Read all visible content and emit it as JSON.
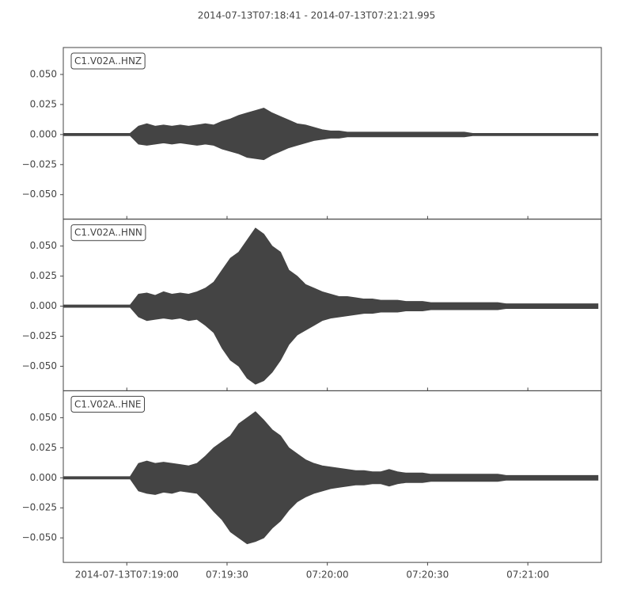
{
  "title": "2014-07-13T07:18:41  -  2014-07-13T07:21:21.995",
  "chart_data": [
    {
      "type": "area",
      "trace_id": "C1.V02A..HNZ",
      "color": "#444444",
      "x": [
        0,
        2.5,
        5,
        7.5,
        10,
        12.5,
        15,
        17.5,
        20,
        22.5,
        25,
        27.5,
        30,
        32.5,
        35,
        37.5,
        40,
        42.5,
        45,
        47.5,
        50,
        52.5,
        55,
        57.5,
        60,
        62.5,
        65,
        67.5,
        70,
        72.5,
        75,
        77.5,
        80,
        82.5,
        85,
        87.5,
        90,
        92.5,
        95,
        97.5,
        100,
        102.5,
        105,
        107.5,
        110,
        112.5,
        115,
        117.5,
        120,
        122.5,
        125,
        127.5,
        130,
        132.5,
        135,
        137.5,
        140,
        142.5,
        145,
        147.5,
        150,
        152.5,
        155,
        157.5,
        160
      ],
      "upper": [
        0.001,
        0.001,
        0.001,
        0.001,
        0.001,
        0.001,
        0.001,
        0.001,
        0.001,
        0.007,
        0.009,
        0.007,
        0.008,
        0.007,
        0.008,
        0.007,
        0.008,
        0.009,
        0.008,
        0.011,
        0.013,
        0.016,
        0.018,
        0.02,
        0.022,
        0.018,
        0.015,
        0.012,
        0.009,
        0.008,
        0.006,
        0.004,
        0.003,
        0.003,
        0.002,
        0.002,
        0.002,
        0.002,
        0.002,
        0.002,
        0.002,
        0.002,
        0.002,
        0.002,
        0.002,
        0.002,
        0.002,
        0.002,
        0.002,
        0.001,
        0.001,
        0.001,
        0.001,
        0.001,
        0.001,
        0.001,
        0.001,
        0.001,
        0.001,
        0.001,
        0.001,
        0.001,
        0.001,
        0.001,
        0.001
      ],
      "lower": [
        -0.001,
        -0.001,
        -0.001,
        -0.001,
        -0.001,
        -0.001,
        -0.001,
        -0.001,
        -0.001,
        -0.008,
        -0.009,
        -0.008,
        -0.007,
        -0.008,
        -0.007,
        -0.008,
        -0.009,
        -0.008,
        -0.009,
        -0.012,
        -0.014,
        -0.016,
        -0.019,
        -0.02,
        -0.021,
        -0.017,
        -0.014,
        -0.011,
        -0.009,
        -0.007,
        -0.005,
        -0.004,
        -0.003,
        -0.003,
        -0.002,
        -0.002,
        -0.002,
        -0.002,
        -0.002,
        -0.002,
        -0.002,
        -0.002,
        -0.002,
        -0.002,
        -0.002,
        -0.002,
        -0.002,
        -0.002,
        -0.002,
        -0.001,
        -0.001,
        -0.001,
        -0.001,
        -0.001,
        -0.001,
        -0.001,
        -0.001,
        -0.001,
        -0.001,
        -0.001,
        -0.001,
        -0.001,
        -0.001,
        -0.001,
        -0.001
      ],
      "ylim": [
        -0.0704,
        0.0724
      ],
      "yticks": [
        {
          "value": -0.05,
          "label": "−0.050"
        },
        {
          "value": -0.025,
          "label": "−0.025"
        },
        {
          "value": 0,
          "label": "0.000"
        },
        {
          "value": 0.025,
          "label": "0.025"
        },
        {
          "value": 0.05,
          "label": "0.050"
        }
      ]
    },
    {
      "type": "area",
      "trace_id": "C1.V02A..HNN",
      "color": "#444444",
      "x": [
        0,
        2.5,
        5,
        7.5,
        10,
        12.5,
        15,
        17.5,
        20,
        22.5,
        25,
        27.5,
        30,
        32.5,
        35,
        37.5,
        40,
        42.5,
        45,
        47.5,
        50,
        52.5,
        55,
        57.5,
        60,
        62.5,
        65,
        67.5,
        70,
        72.5,
        75,
        77.5,
        80,
        82.5,
        85,
        87.5,
        90,
        92.5,
        95,
        97.5,
        100,
        102.5,
        105,
        107.5,
        110,
        112.5,
        115,
        117.5,
        120,
        122.5,
        125,
        127.5,
        130,
        132.5,
        135,
        137.5,
        140,
        142.5,
        145,
        147.5,
        150,
        152.5,
        155,
        157.5,
        160
      ],
      "upper": [
        0.001,
        0.001,
        0.001,
        0.001,
        0.001,
        0.001,
        0.001,
        0.001,
        0.001,
        0.01,
        0.011,
        0.009,
        0.012,
        0.01,
        0.011,
        0.01,
        0.012,
        0.015,
        0.02,
        0.03,
        0.04,
        0.045,
        0.055,
        0.065,
        0.06,
        0.05,
        0.045,
        0.03,
        0.025,
        0.018,
        0.015,
        0.012,
        0.01,
        0.008,
        0.008,
        0.007,
        0.006,
        0.006,
        0.005,
        0.005,
        0.005,
        0.004,
        0.004,
        0.004,
        0.003,
        0.003,
        0.003,
        0.003,
        0.003,
        0.003,
        0.003,
        0.003,
        0.003,
        0.002,
        0.002,
        0.002,
        0.002,
        0.002,
        0.002,
        0.002,
        0.002,
        0.002,
        0.002,
        0.002,
        0.002
      ],
      "lower": [
        -0.001,
        -0.001,
        -0.001,
        -0.001,
        -0.001,
        -0.001,
        -0.001,
        -0.001,
        -0.001,
        -0.009,
        -0.012,
        -0.011,
        -0.01,
        -0.011,
        -0.01,
        -0.012,
        -0.011,
        -0.016,
        -0.022,
        -0.035,
        -0.045,
        -0.05,
        -0.06,
        -0.065,
        -0.062,
        -0.055,
        -0.045,
        -0.032,
        -0.024,
        -0.02,
        -0.016,
        -0.012,
        -0.01,
        -0.009,
        -0.008,
        -0.007,
        -0.006,
        -0.006,
        -0.005,
        -0.005,
        -0.005,
        -0.004,
        -0.004,
        -0.004,
        -0.003,
        -0.003,
        -0.003,
        -0.003,
        -0.003,
        -0.003,
        -0.003,
        -0.003,
        -0.003,
        -0.002,
        -0.002,
        -0.002,
        -0.002,
        -0.002,
        -0.002,
        -0.002,
        -0.002,
        -0.002,
        -0.002,
        -0.002,
        -0.002
      ],
      "ylim": [
        -0.0704,
        0.0724
      ],
      "yticks": [
        {
          "value": -0.05,
          "label": "−0.050"
        },
        {
          "value": -0.025,
          "label": "−0.025"
        },
        {
          "value": 0,
          "label": "0.000"
        },
        {
          "value": 0.025,
          "label": "0.025"
        },
        {
          "value": 0.05,
          "label": "0.050"
        }
      ]
    },
    {
      "type": "area",
      "trace_id": "C1.V02A..HNE",
      "color": "#444444",
      "x": [
        0,
        2.5,
        5,
        7.5,
        10,
        12.5,
        15,
        17.5,
        20,
        22.5,
        25,
        27.5,
        30,
        32.5,
        35,
        37.5,
        40,
        42.5,
        45,
        47.5,
        50,
        52.5,
        55,
        57.5,
        60,
        62.5,
        65,
        67.5,
        70,
        72.5,
        75,
        77.5,
        80,
        82.5,
        85,
        87.5,
        90,
        92.5,
        95,
        97.5,
        100,
        102.5,
        105,
        107.5,
        110,
        112.5,
        115,
        117.5,
        120,
        122.5,
        125,
        127.5,
        130,
        132.5,
        135,
        137.5,
        140,
        142.5,
        145,
        147.5,
        150,
        152.5,
        155,
        157.5,
        160
      ],
      "upper": [
        0.001,
        0.001,
        0.001,
        0.001,
        0.001,
        0.001,
        0.001,
        0.001,
        0.001,
        0.012,
        0.014,
        0.012,
        0.013,
        0.012,
        0.011,
        0.01,
        0.012,
        0.018,
        0.025,
        0.03,
        0.035,
        0.045,
        0.05,
        0.055,
        0.048,
        0.04,
        0.035,
        0.025,
        0.02,
        0.015,
        0.012,
        0.01,
        0.009,
        0.008,
        0.007,
        0.006,
        0.006,
        0.005,
        0.005,
        0.007,
        0.005,
        0.004,
        0.004,
        0.004,
        0.003,
        0.003,
        0.003,
        0.003,
        0.003,
        0.003,
        0.003,
        0.003,
        0.003,
        0.002,
        0.002,
        0.002,
        0.002,
        0.002,
        0.002,
        0.002,
        0.002,
        0.002,
        0.002,
        0.002,
        0.002
      ],
      "lower": [
        -0.001,
        -0.001,
        -0.001,
        -0.001,
        -0.001,
        -0.001,
        -0.001,
        -0.001,
        -0.001,
        -0.011,
        -0.013,
        -0.014,
        -0.012,
        -0.013,
        -0.011,
        -0.012,
        -0.013,
        -0.02,
        -0.028,
        -0.035,
        -0.045,
        -0.05,
        -0.055,
        -0.053,
        -0.05,
        -0.042,
        -0.036,
        -0.027,
        -0.02,
        -0.016,
        -0.013,
        -0.011,
        -0.009,
        -0.008,
        -0.007,
        -0.006,
        -0.006,
        -0.005,
        -0.005,
        -0.007,
        -0.005,
        -0.004,
        -0.004,
        -0.004,
        -0.003,
        -0.003,
        -0.003,
        -0.003,
        -0.003,
        -0.003,
        -0.003,
        -0.003,
        -0.003,
        -0.002,
        -0.002,
        -0.002,
        -0.002,
        -0.002,
        -0.002,
        -0.002,
        -0.002,
        -0.002,
        -0.002,
        -0.002,
        -0.002
      ],
      "ylim": [
        -0.0704,
        0.0724
      ],
      "yticks": [
        {
          "value": -0.05,
          "label": "−0.050"
        },
        {
          "value": -0.025,
          "label": "−0.025"
        },
        {
          "value": 0,
          "label": "0.000"
        },
        {
          "value": 0.025,
          "label": "0.025"
        },
        {
          "value": 0.05,
          "label": "0.050"
        }
      ],
      "xlim": [
        0,
        160.995
      ],
      "xticks": [
        {
          "value": 19,
          "label": "2014-07-13T07:19:00"
        },
        {
          "value": 49,
          "label": "07:19:30"
        },
        {
          "value": 79,
          "label": "07:20:00"
        },
        {
          "value": 109,
          "label": "07:20:30"
        },
        {
          "value": 139,
          "label": "07:21:00"
        }
      ]
    }
  ]
}
